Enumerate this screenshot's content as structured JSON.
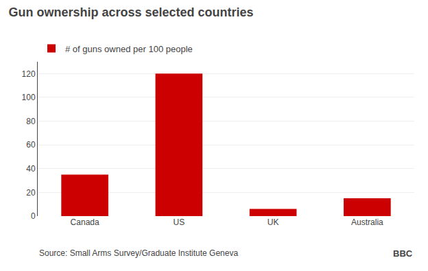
{
  "chart_data": {
    "type": "bar",
    "title": "Gun ownership across selected countries",
    "categories": [
      "Canada",
      "US",
      "UK",
      "Australia"
    ],
    "series": [
      {
        "name": "# of guns owned per 100 people",
        "color": "#cc0000",
        "values": [
          35,
          120,
          6,
          15
        ]
      }
    ],
    "ylim": [
      0,
      130
    ],
    "yticks": [
      0,
      20,
      40,
      60,
      80,
      100,
      120
    ],
    "grid": true,
    "legend": "top left",
    "annotations": [
      "Source: Small Arms Survey/Graduate Institute Geneva",
      "BBC"
    ]
  }
}
